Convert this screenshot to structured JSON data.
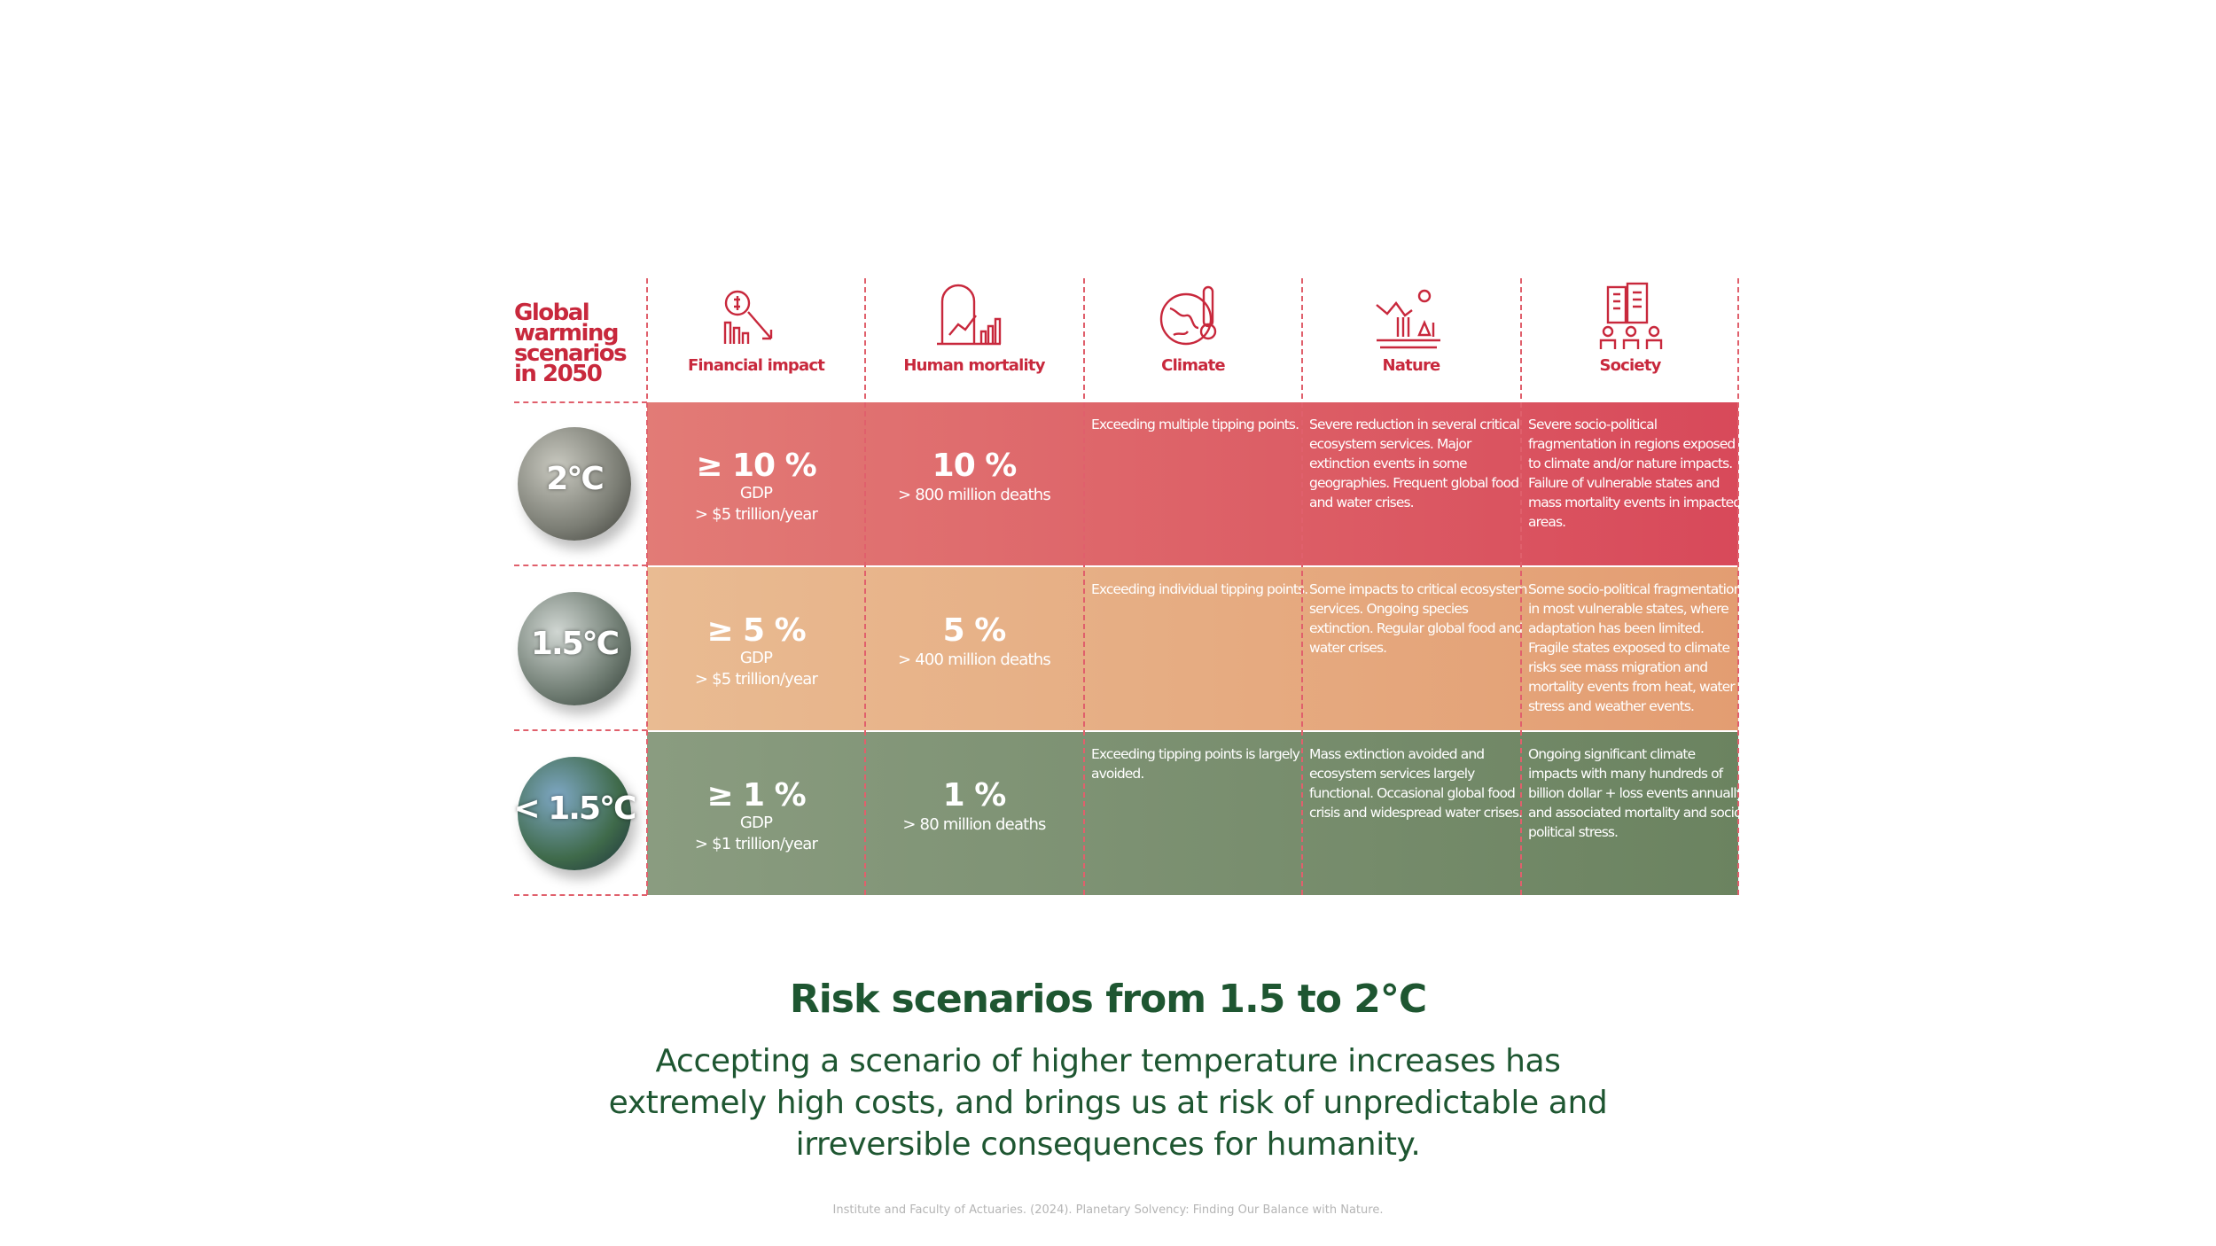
{
  "header": {
    "row_label": "Global warming scenarios in 2050",
    "columns": [
      "Financial impact",
      "Human mortality",
      "Climate",
      "Nature",
      "Society"
    ]
  },
  "rows": [
    {
      "scenario": "2°C",
      "financial": {
        "value": "≥ 10 %",
        "unit": "GDP",
        "detail": "> $5 trillion/year"
      },
      "mortality": {
        "value": "10 %",
        "detail": "> 800 million deaths"
      },
      "climate": "Exceeding multiple tipping points.",
      "nature": "Severe reduction in several critical ecosystem services. Major extinction events in some geographies. Frequent global food and water crises.",
      "society": "Severe socio-political fragmentation in regions exposed to climate and/or nature impacts. Failure of vulnerable states and mass mortality events in impacted areas."
    },
    {
      "scenario": "1.5°C",
      "financial": {
        "value": "≥ 5 %",
        "unit": "GDP",
        "detail": "> $5 trillion/year"
      },
      "mortality": {
        "value": "5 %",
        "detail": "> 400 million deaths"
      },
      "climate": "Exceeding individual tipping points.",
      "nature": "Some impacts to critical ecosystem services. Ongoing species extinction. Regular global food and water crises.",
      "society": "Some socio-political fragmentation in most vulnerable states, where adaptation has been limited. Fragile states exposed to climate risks see mass migration and mortality events from heat, water stress and weather events."
    },
    {
      "scenario": "< 1.5°C",
      "financial": {
        "value": "≥ 1 %",
        "unit": "GDP",
        "detail": "> $1 trillion/year"
      },
      "mortality": {
        "value": "1 %",
        "detail": "> 80 million deaths"
      },
      "climate": "Exceeding tipping points is largely avoided.",
      "nature": "Mass extinction avoided and ecosystem services largely functional. Occasional global food crisis and widespread water crises.",
      "society": "Ongoing significant climate impacts with many hundreds of billion dollar + loss events annually and associated mortality and socio-political stress."
    }
  ],
  "title": "Risk scenarios from 1.5 to 2°C",
  "subtitle": "Accepting a scenario of higher temperature increases has extremely high costs, and brings us at risk of unpredictable and irreversible consequences for humanity.",
  "source": "Institute and Faculty of Actuaries. (2024). Planetary Solvency: Finding Our Balance with Nature."
}
